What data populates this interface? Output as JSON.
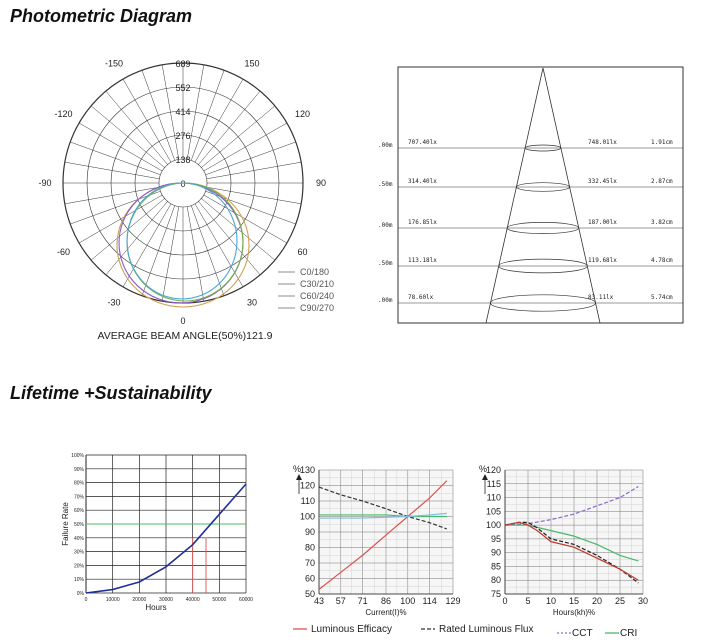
{
  "sections": {
    "photometric_title": "Photometric Diagram",
    "lifetime_title": "Lifetime +Sustainability"
  },
  "chart_data": [
    {
      "type": "polar",
      "radial_ticks": [
        "689",
        "552",
        "414",
        "276",
        "138",
        "0"
      ],
      "angle_labels": [
        "-150",
        "150",
        "-120",
        "120",
        "-90",
        "90",
        "-60",
        "60",
        "-30",
        "30",
        "0"
      ],
      "legend": [
        "C0/180",
        "C30/210",
        "C60/240",
        "C90/270"
      ],
      "series_colors": [
        "#d0a050",
        "#8a5ac8",
        "#78b048",
        "#48a8d8"
      ],
      "caption": "AVERAGE BEAM ANGLE(50%)121.9"
    },
    {
      "type": "table",
      "rows": [
        {
          "distance": ".00m",
          "illuminance_center": "707.40lx",
          "illuminance_avg": "748.01lx",
          "diameter": "1.91cm"
        },
        {
          "distance": ".50m",
          "illuminance_center": "314.40lx",
          "illuminance_avg": "332.45lx",
          "diameter": "2.87cm"
        },
        {
          "distance": ".00m",
          "illuminance_center": "176.85lx",
          "illuminance_avg": "187.00lx",
          "diameter": "3.82cm"
        },
        {
          "distance": ".50m",
          "illuminance_center": "113.18lx",
          "illuminance_avg": "119.68lx",
          "diameter": "4.78cm"
        },
        {
          "distance": ".00m",
          "illuminance_center": "78.60lx",
          "illuminance_avg": "83.11lx",
          "diameter": "5.74cm"
        }
      ]
    },
    {
      "type": "line",
      "ylabel": "Failure Rate",
      "xlabel": "Hours",
      "xlim": [
        0,
        60000
      ],
      "ylim": [
        0,
        100
      ],
      "x_ticks": [
        "0",
        "10000",
        "20000",
        "30000",
        "40000",
        "50000",
        "60000"
      ],
      "y_ticks": [
        "0%",
        "10%",
        "20%",
        "30%",
        "40%",
        "50%",
        "60%",
        "70%",
        "80%",
        "90%",
        "100%"
      ],
      "series": [
        {
          "x": [
            0,
            10000,
            20000,
            30000,
            40000,
            50000,
            60000
          ],
          "y": [
            0,
            2.5,
            8,
            19,
            35,
            57,
            79
          ]
        }
      ],
      "marker_lines_x": [
        40000,
        45000
      ],
      "color": "#1f2f9a"
    },
    {
      "type": "line",
      "ylabel": "%",
      "xlabel": "Current(I)%",
      "x_ticks": [
        "43",
        "57",
        "71",
        "86",
        "100",
        "114",
        "129"
      ],
      "y_ticks": [
        "50",
        "60",
        "70",
        "80",
        "90",
        "100",
        "110",
        "120",
        "130"
      ],
      "xlim": [
        43,
        129
      ],
      "ylim": [
        50,
        130
      ],
      "series": [
        {
          "name": "Luminous Efficacy",
          "color": "#d9534f",
          "x": [
            43,
            57,
            71,
            86,
            100,
            114,
            125
          ],
          "y": [
            53,
            64,
            75,
            88,
            100,
            112,
            123
          ]
        },
        {
          "name": "Rated Luminous Flux",
          "color": "#333333",
          "x": [
            43,
            57,
            71,
            86,
            100,
            114,
            125
          ],
          "y": [
            119,
            114,
            110,
            105,
            100,
            96,
            92
          ]
        },
        {
          "name": "",
          "color": "#4ab86a",
          "x": [
            43,
            57,
            71,
            86,
            100,
            114,
            125
          ],
          "y": [
            101,
            101,
            101,
            101,
            100,
            100,
            100
          ]
        },
        {
          "name": "",
          "color": "#7bc0e0",
          "x": [
            43,
            57,
            71,
            86,
            100,
            114,
            125
          ],
          "y": [
            99,
            99,
            99,
            99.5,
            100,
            101,
            102
          ]
        }
      ],
      "legend": [
        {
          "label": "Luminous Efficacy",
          "color": "#d9534f",
          "style": "solid"
        },
        {
          "label": "Rated Luminous Flux",
          "color": "#333333",
          "style": "dashed"
        }
      ]
    },
    {
      "type": "line",
      "ylabel": "%",
      "xlabel": "Hours(kh)%",
      "x_ticks": [
        "0",
        "5",
        "10",
        "15",
        "20",
        "25",
        "30"
      ],
      "y_ticks": [
        "75",
        "80",
        "85",
        "90",
        "95",
        "100",
        "105",
        "110",
        "115",
        "120"
      ],
      "xlim": [
        0,
        30
      ],
      "ylim": [
        75,
        120
      ],
      "series": [
        {
          "name": "CCT",
          "color": "#8a6ac8",
          "style": "dashed",
          "x": [
            0,
            5,
            10,
            15,
            20,
            25,
            29
          ],
          "y": [
            100,
            100.5,
            102,
            104,
            107,
            110,
            114
          ]
        },
        {
          "name": "CRI",
          "color": "#4ab86a",
          "style": "solid",
          "x": [
            0,
            5,
            10,
            15,
            20,
            25,
            29
          ],
          "y": [
            100,
            100,
            98,
            96,
            93,
            89,
            87
          ]
        },
        {
          "name": "",
          "color": "#222222",
          "style": "dashed",
          "x": [
            0,
            3,
            5,
            7,
            10,
            15,
            20,
            25,
            29
          ],
          "y": [
            100,
            101,
            101,
            99,
            95,
            93,
            89,
            84,
            79
          ]
        },
        {
          "name": "",
          "color": "#c0392b",
          "style": "solid",
          "x": [
            0,
            3,
            5,
            7,
            10,
            15,
            20,
            25,
            29
          ],
          "y": [
            100,
            101,
            100,
            98,
            94,
            92,
            88,
            84,
            80
          ]
        }
      ],
      "legend": [
        {
          "label": "CCT",
          "color": "#8a6ac8",
          "style": "dashed"
        },
        {
          "label": "CRI",
          "color": "#4ab86a",
          "style": "solid"
        }
      ]
    }
  ]
}
